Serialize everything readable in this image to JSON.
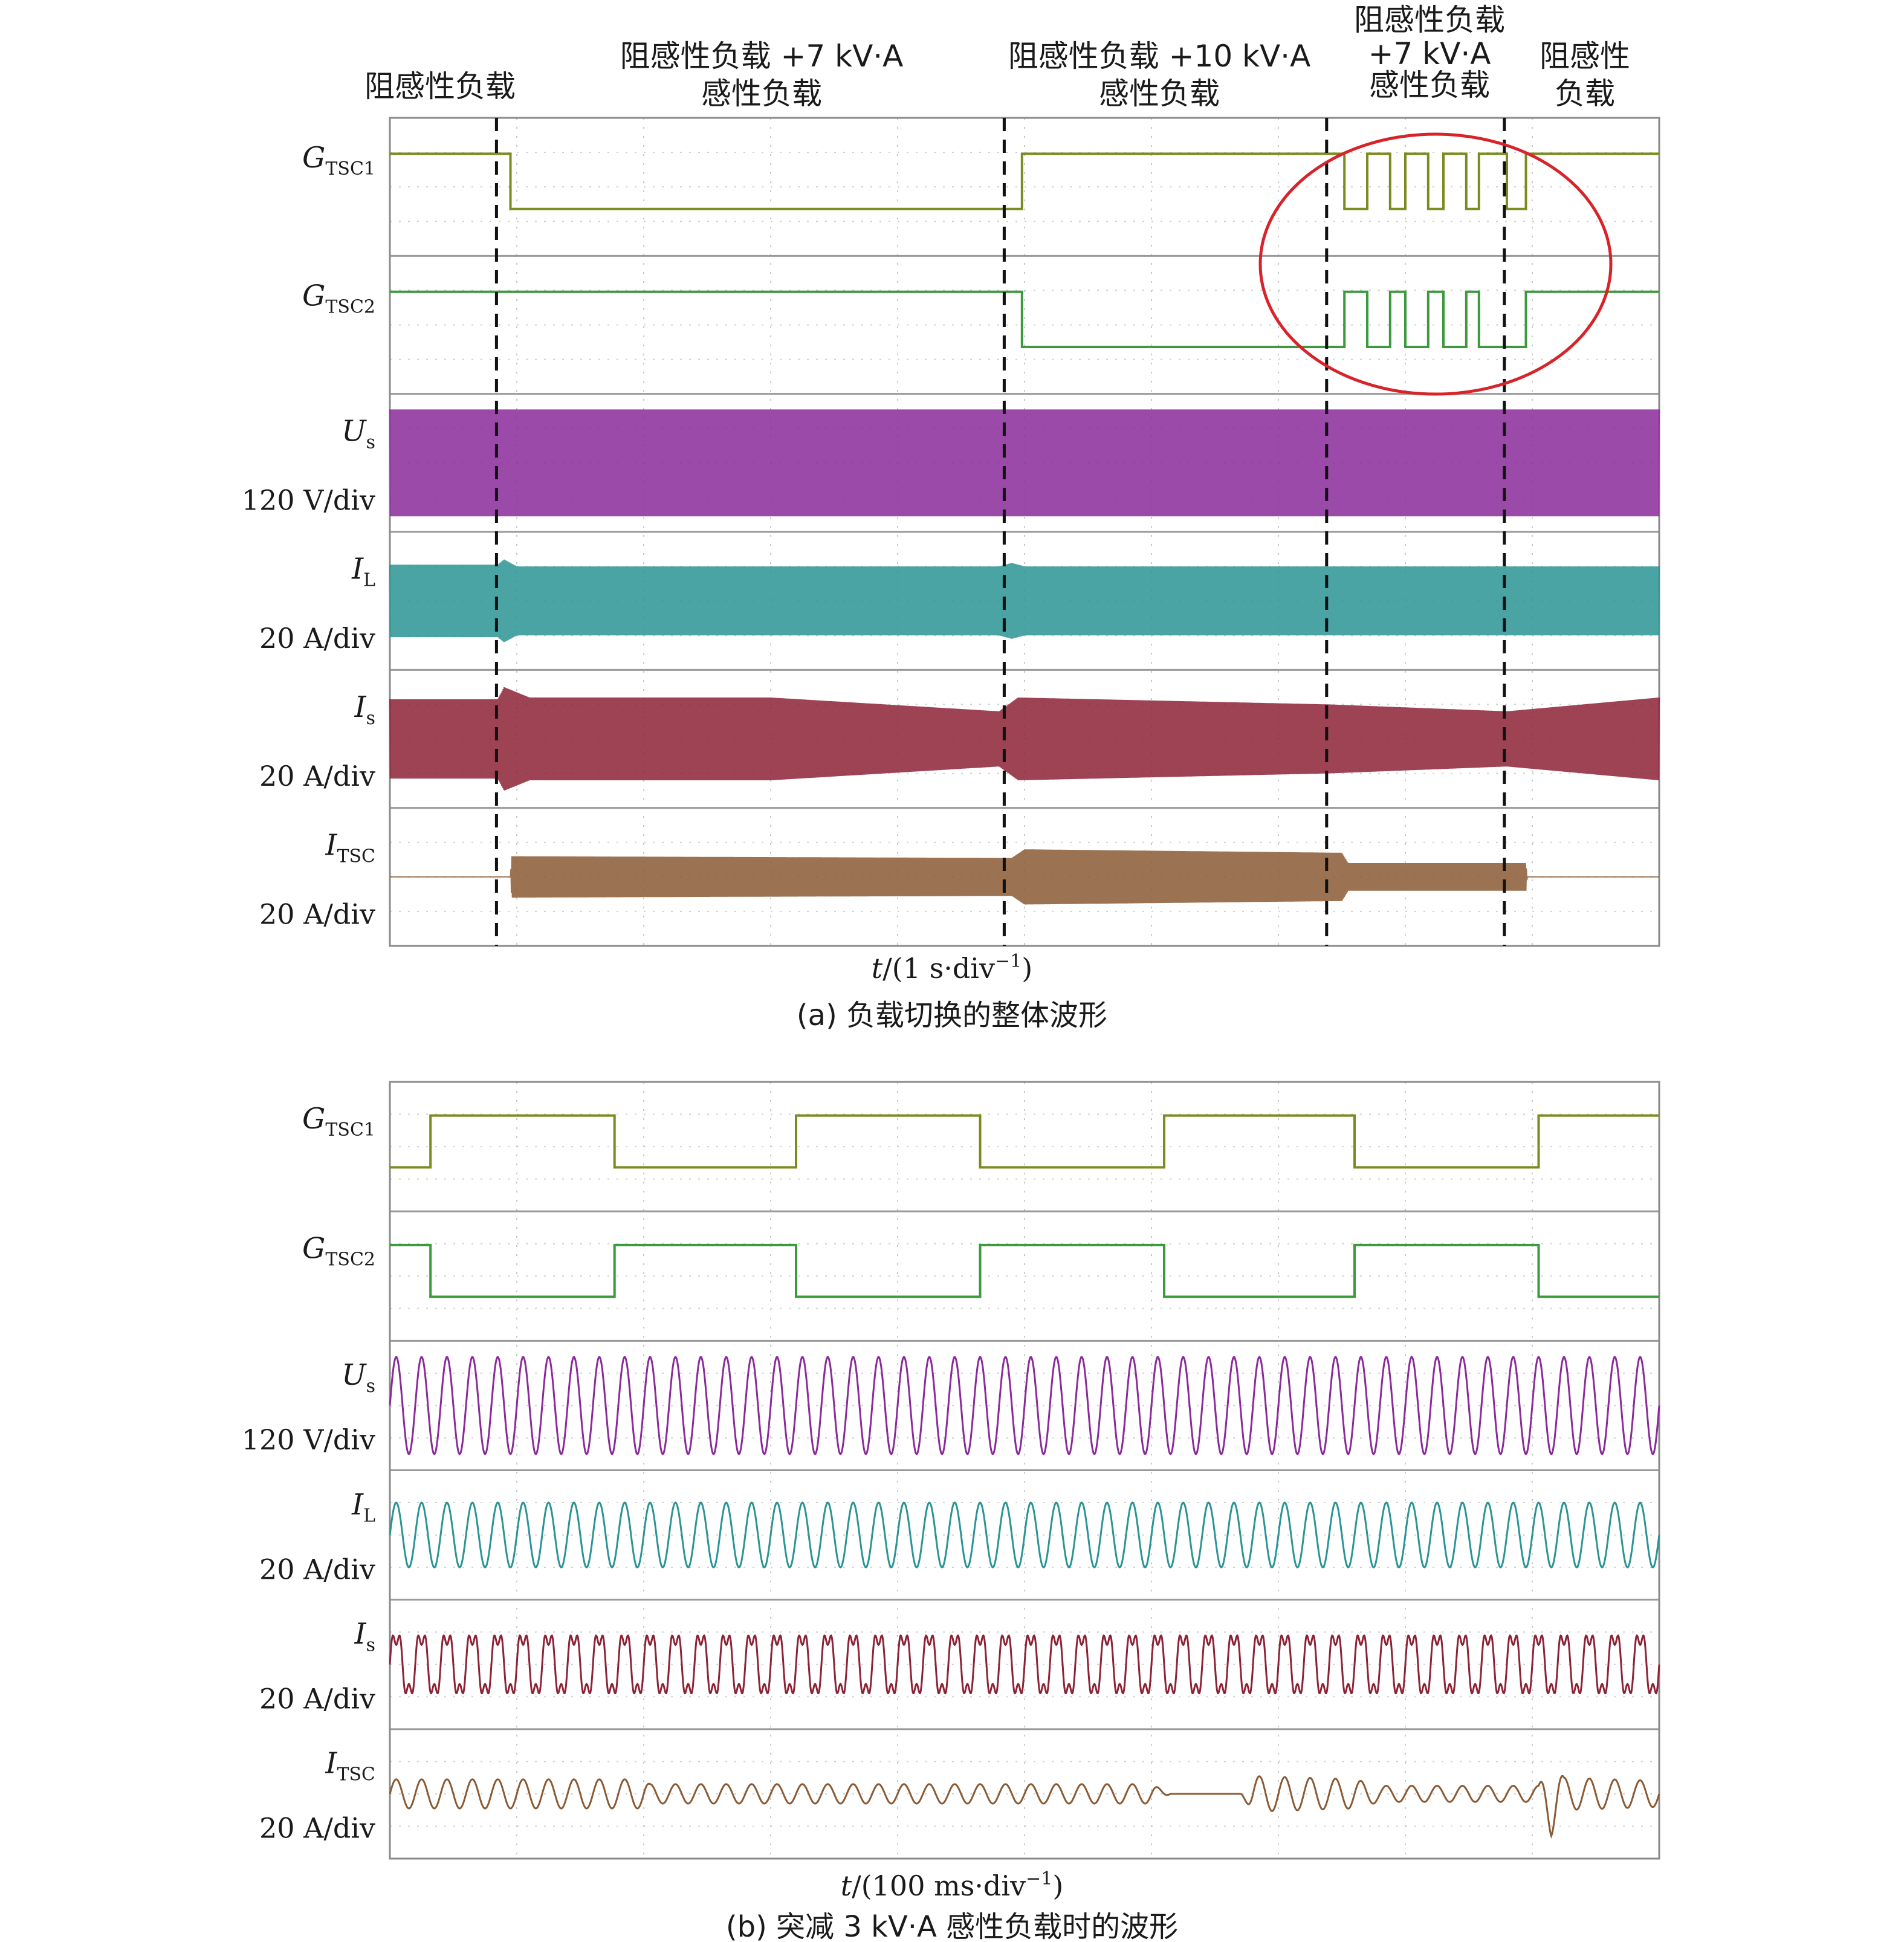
{
  "colors": {
    "g1": "#7c8a1e",
    "g2": "#3a9a3c",
    "us": "#8a2a9a",
    "il": "#2a9494",
    "is": "#8c2236",
    "itsc": "#8a5a34",
    "highlight": "#d8232a"
  },
  "chart_data": [
    {
      "type": "line",
      "caption": "(a) 负载切换的整体波形",
      "xlabel_var": "t",
      "xlabel_unit": "/(1 s·div",
      "xlabel_exp": "−1",
      "xlabel_close": ")",
      "x_unit": "s",
      "xlim": [
        0,
        10
      ],
      "grid": true,
      "events": [
        {
          "t": 0.84,
          "label": "阻感性负载 +7 kV·A 感性负载"
        },
        {
          "t": 4.84,
          "label": "阻感性负载 +10 kV·A 感性负载"
        },
        {
          "t": 7.38,
          "label": "阻感性负载 +7 kV·A 感性负载"
        },
        {
          "t": 8.78,
          "label": "阻感性负载"
        }
      ],
      "region_labels": {
        "r0": "阻感性负载",
        "r1_line1": "阻感性负载 +7 kV·A",
        "r1_line2": "感性负载",
        "r2_line1": "阻感性负载 +10 kV·A",
        "r2_line2": "感性负载",
        "r3_line1": "阻感性负载",
        "r3_line2": "+7 kV·A",
        "r3_line3": "感性负载",
        "r4_line1": "阻感性",
        "r4_line2": "负载"
      },
      "highlight": "ellipse",
      "series": [
        {
          "name": "G",
          "sub": "TSC1",
          "scale": "",
          "steps": [
            [
              0,
              1
            ],
            [
              0.95,
              0
            ],
            [
              4.98,
              1
            ],
            [
              7.52,
              0
            ],
            [
              7.7,
              1
            ],
            [
              7.88,
              0
            ],
            [
              8.0,
              1
            ],
            [
              8.18,
              0
            ],
            [
              8.3,
              1
            ],
            [
              8.48,
              0
            ],
            [
              8.58,
              1
            ],
            [
              8.8,
              0
            ],
            [
              8.95,
              1
            ]
          ]
        },
        {
          "name": "G",
          "sub": "TSC2",
          "scale": "",
          "steps": [
            [
              0,
              1
            ],
            [
              4.98,
              0
            ],
            [
              7.52,
              1
            ],
            [
              7.7,
              0
            ],
            [
              7.88,
              1
            ],
            [
              8.0,
              0
            ],
            [
              8.18,
              1
            ],
            [
              8.3,
              0
            ],
            [
              8.48,
              1
            ],
            [
              8.58,
              0
            ],
            [
              8.95,
              1
            ]
          ]
        },
        {
          "name": "U",
          "sub": "s",
          "scale": "120 V/div",
          "envelope": [
            [
              0,
              1.55
            ],
            [
              10,
              1.55
            ]
          ]
        },
        {
          "name": "I",
          "sub": "L",
          "scale": "20 A/div",
          "envelope": [
            [
              0,
              1.05
            ],
            [
              0.85,
              1.05
            ],
            [
              0.9,
              1.2
            ],
            [
              1.0,
              1.0
            ],
            [
              4.8,
              1.0
            ],
            [
              4.9,
              1.1
            ],
            [
              5.0,
              1.0
            ],
            [
              10,
              1.0
            ]
          ]
        },
        {
          "name": "I",
          "sub": "s",
          "scale": "20 A/div",
          "envelope": [
            [
              0,
              1.15
            ],
            [
              0.85,
              1.15
            ],
            [
              0.9,
              1.5
            ],
            [
              1.1,
              1.2
            ],
            [
              3.0,
              1.2
            ],
            [
              4.8,
              0.8
            ],
            [
              4.95,
              1.2
            ],
            [
              7.4,
              1.0
            ],
            [
              8.8,
              0.8
            ],
            [
              10,
              1.2
            ]
          ]
        },
        {
          "name": "I",
          "sub": "TSC",
          "scale": "20 A/div",
          "envelope": [
            [
              0,
              0
            ],
            [
              0.95,
              0
            ],
            [
              0.96,
              0.6
            ],
            [
              4.9,
              0.55
            ],
            [
              5.0,
              0.8
            ],
            [
              7.5,
              0.7
            ],
            [
              7.55,
              0.4
            ],
            [
              8.95,
              0.4
            ],
            [
              8.96,
              0
            ],
            [
              10,
              0
            ]
          ]
        }
      ]
    },
    {
      "type": "line",
      "caption": "(b) 突减 3 kV·A 感性负载时的波形",
      "xlabel_var": "t",
      "xlabel_unit": "/(100 ms·div",
      "xlabel_exp": "−1",
      "xlabel_close": ")",
      "x_unit": "ms",
      "xlim": [
        0,
        1000
      ],
      "grid": true,
      "series": [
        {
          "name": "G",
          "sub": "TSC1",
          "scale": "",
          "steps": [
            [
              0,
              0
            ],
            [
              32,
              1
            ],
            [
              177,
              0
            ],
            [
              320,
              1
            ],
            [
              465,
              0
            ],
            [
              610,
              1
            ],
            [
              760,
              0
            ],
            [
              905,
              1
            ]
          ]
        },
        {
          "name": "G",
          "sub": "TSC2",
          "scale": "",
          "steps": [
            [
              0,
              1
            ],
            [
              32,
              0
            ],
            [
              177,
              1
            ],
            [
              320,
              0
            ],
            [
              465,
              1
            ],
            [
              610,
              0
            ],
            [
              760,
              1
            ],
            [
              905,
              0
            ]
          ]
        },
        {
          "name": "U",
          "sub": "s",
          "scale": "120 V/div",
          "frequency_hz": 50,
          "amplitude_div": 1.5
        },
        {
          "name": "I",
          "sub": "L",
          "scale": "20 A/div",
          "frequency_hz": 50,
          "amplitude_div": 1.0
        },
        {
          "name": "I",
          "sub": "s",
          "scale": "20 A/div",
          "frequency_hz": 50,
          "amplitude_div": 1.1
        },
        {
          "name": "I",
          "sub": "TSC",
          "scale": "20 A/div",
          "frequency_hz": 50,
          "amplitude_profile": [
            [
              0,
              0.45
            ],
            [
              200,
              0.45
            ],
            [
              205,
              0.3
            ],
            [
              600,
              0.3
            ],
            [
              615,
              0
            ],
            [
              670,
              0
            ],
            [
              680,
              0.55
            ],
            [
              760,
              0.45
            ],
            [
              780,
              0.25
            ],
            [
              905,
              0.25
            ],
            [
              915,
              1.3
            ],
            [
              925,
              0.5
            ],
            [
              1000,
              0.4
            ]
          ]
        }
      ]
    }
  ]
}
